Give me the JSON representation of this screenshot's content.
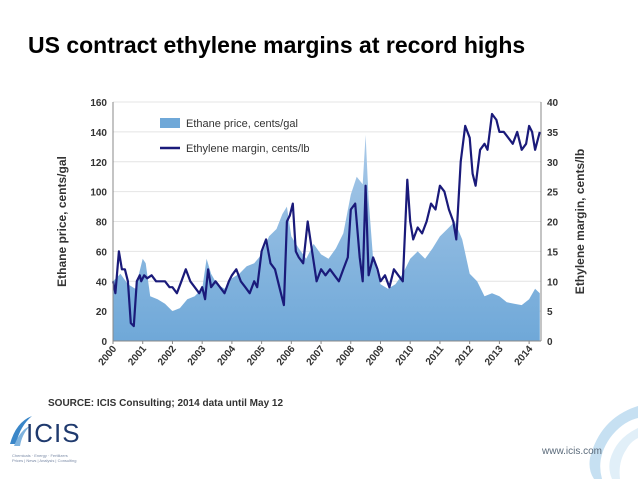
{
  "slide": {
    "title": "US contract ethylene margins at record highs",
    "source": "SOURCE: ICIS Consulting; 2014 data until May 12",
    "url": "www.icis.com",
    "logo_text": "ICIS",
    "logo_tagline": "Chemicals · Energy · Fertilizers",
    "logo_tagline2": "Prices | News | Analysis | Consulting"
  },
  "colors": {
    "area": "#6fa8d8",
    "area_top": "#a9c9e8",
    "line": "#1a1a7a",
    "text": "#333333"
  },
  "chart_data": {
    "type": "area",
    "ylabel_left": "Ethane price, cents/gal",
    "ylabel_right": "Ethylene margin, cents/lb",
    "ylim_left": [
      0,
      160
    ],
    "ylim_right": [
      0,
      40
    ],
    "left_ticks": [
      "0",
      "20",
      "40",
      "60",
      "80",
      "100",
      "120",
      "140",
      "160"
    ],
    "right_ticks": [
      "0",
      "5",
      "10",
      "15",
      "20",
      "25",
      "30",
      "35",
      "40"
    ],
    "x_ticks": [
      "2000",
      "2001",
      "2002",
      "2003",
      "2004",
      "2005",
      "2006",
      "2007",
      "2008",
      "2009",
      "2010",
      "2011",
      "2012",
      "2013",
      "2014"
    ],
    "legend_position": "top-left",
    "series": [
      {
        "name": "Ethane price, cents/gal",
        "kind": "area",
        "axis": "left",
        "x": [
          2000.0,
          2000.25,
          2000.5,
          2000.75,
          2001.0,
          2001.1,
          2001.25,
          2001.5,
          2001.75,
          2002.0,
          2002.25,
          2002.5,
          2002.75,
          2003.0,
          2003.15,
          2003.3,
          2003.5,
          2003.75,
          2004.0,
          2004.25,
          2004.5,
          2004.75,
          2005.0,
          2005.25,
          2005.5,
          2005.7,
          2005.85,
          2006.0,
          2006.25,
          2006.5,
          2006.75,
          2007.0,
          2007.25,
          2007.5,
          2007.75,
          2008.0,
          2008.2,
          2008.4,
          2008.5,
          2008.6,
          2008.75,
          2009.0,
          2009.25,
          2009.5,
          2009.75,
          2010.0,
          2010.25,
          2010.5,
          2010.75,
          2011.0,
          2011.25,
          2011.5,
          2011.75,
          2012.0,
          2012.25,
          2012.5,
          2012.75,
          2013.0,
          2013.25,
          2013.5,
          2013.75,
          2014.0,
          2014.2,
          2014.36
        ],
        "values": [
          40,
          45,
          38,
          35,
          55,
          52,
          30,
          28,
          25,
          20,
          22,
          28,
          30,
          35,
          55,
          45,
          38,
          35,
          42,
          45,
          50,
          52,
          58,
          70,
          75,
          85,
          90,
          70,
          62,
          55,
          65,
          58,
          55,
          62,
          72,
          98,
          110,
          105,
          138,
          95,
          55,
          38,
          35,
          38,
          45,
          55,
          60,
          55,
          62,
          70,
          75,
          80,
          68,
          45,
          40,
          30,
          32,
          30,
          26,
          25,
          24,
          28,
          35,
          32
        ]
      },
      {
        "name": "Ethylene margin, cents/lb",
        "kind": "line",
        "axis": "right",
        "x": [
          2000.0,
          2000.08,
          2000.2,
          2000.3,
          2000.4,
          2000.5,
          2000.6,
          2000.7,
          2000.8,
          2000.9,
          2000.95,
          2001.05,
          2001.15,
          2001.3,
          2001.45,
          2001.6,
          2001.75,
          2001.9,
          2002.0,
          2002.15,
          2002.3,
          2002.45,
          2002.6,
          2002.75,
          2002.9,
          2003.0,
          2003.1,
          2003.2,
          2003.3,
          2003.45,
          2003.6,
          2003.75,
          2003.9,
          2004.0,
          2004.15,
          2004.3,
          2004.45,
          2004.6,
          2004.75,
          2004.85,
          2005.0,
          2005.15,
          2005.3,
          2005.45,
          2005.6,
          2005.75,
          2005.85,
          2005.95,
          2006.05,
          2006.15,
          2006.25,
          2006.4,
          2006.55,
          2006.7,
          2006.85,
          2007.0,
          2007.15,
          2007.3,
          2007.45,
          2007.6,
          2007.75,
          2007.9,
          2008.0,
          2008.15,
          2008.3,
          2008.4,
          2008.5,
          2008.6,
          2008.75,
          2008.9,
          2009.0,
          2009.15,
          2009.3,
          2009.45,
          2009.6,
          2009.75,
          2009.9,
          2010.0,
          2010.1,
          2010.25,
          2010.4,
          2010.55,
          2010.7,
          2010.85,
          2011.0,
          2011.15,
          2011.3,
          2011.45,
          2011.55,
          2011.7,
          2011.85,
          2012.0,
          2012.1,
          2012.2,
          2012.35,
          2012.5,
          2012.6,
          2012.75,
          2012.9,
          2013.0,
          2013.15,
          2013.3,
          2013.45,
          2013.6,
          2013.75,
          2013.9,
          2014.0,
          2014.1,
          2014.2,
          2014.36
        ],
        "values": [
          10,
          8,
          15,
          12,
          12,
          10,
          3,
          2.5,
          10,
          11,
          10,
          11,
          10.5,
          11,
          10,
          10,
          10,
          9,
          9,
          8,
          10,
          12,
          10,
          9,
          8,
          9,
          7,
          12,
          9,
          10,
          9,
          8,
          10,
          11,
          12,
          10,
          9,
          8,
          10,
          9,
          15,
          17,
          13,
          12,
          9,
          6,
          20,
          21,
          23,
          15,
          14,
          13,
          20,
          15,
          10,
          12,
          11,
          12,
          11,
          10,
          12,
          14,
          22,
          23,
          14,
          10,
          26,
          11,
          14,
          12,
          10,
          11,
          9,
          12,
          11,
          10,
          27,
          20,
          17,
          19,
          18,
          20,
          23,
          22,
          26,
          25,
          22,
          20,
          17,
          30,
          36,
          34,
          28,
          26,
          32,
          33,
          32,
          38,
          37,
          35,
          35,
          34,
          33,
          35,
          32,
          33,
          36,
          35,
          32,
          35
        ]
      }
    ]
  }
}
